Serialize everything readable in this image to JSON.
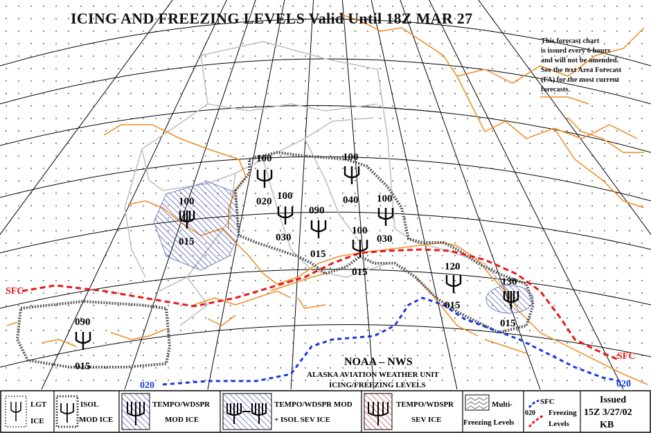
{
  "title": "ICING AND FREEZING LEVELS Valid Until 18Z MAR 27",
  "notice": [
    "This forecast chart",
    "is issued every 6 hours",
    "and will not be amended.",
    "See the text Area Forecast",
    "(FA) for the most current",
    "forecasts."
  ],
  "icing_areas": [
    {
      "top": "100",
      "bottom": "015",
      "category": "TEMPO/WDSPR MOD ICE"
    },
    {
      "top": "100",
      "bottom": "020",
      "category": "ISOL MOD ICE"
    },
    {
      "top": "100",
      "bottom": "030",
      "category": "ISOL MOD ICE"
    },
    {
      "top": "090",
      "bottom": "015",
      "category": "ISOL MOD ICE"
    },
    {
      "top": "100",
      "bottom": "040",
      "category": "ISOL MOD ICE"
    },
    {
      "top": "100",
      "bottom": "030",
      "category": "ISOL MOD ICE"
    },
    {
      "top": "100",
      "bottom": "015",
      "category": "ISOL MOD ICE"
    },
    {
      "top": "120",
      "bottom": "015",
      "category": "ISOL MOD ICE"
    },
    {
      "top": "130",
      "bottom": "015",
      "category": "TEMPO/WDSPR MOD ICE"
    },
    {
      "top": "090",
      "bottom": "015",
      "category": "ISOL MOD ICE"
    }
  ],
  "freezing_levels": {
    "surface_label_west": "SFC",
    "surface_label_east": "SFC",
    "level_020_west": "020",
    "level_020_east": "020"
  },
  "agency": {
    "name": "NOAA – NWS",
    "unit": "ALASKA AVIATION WEATHER UNIT",
    "product": "ICING/FREEZING LEVELS"
  },
  "legend": {
    "lgt_ice": [
      "LGT",
      "ICE"
    ],
    "isol_mod_ice": [
      "ISOL",
      "MOD ICE"
    ],
    "tempo_mod_ice": [
      "TEMPO/WDSPR",
      "MOD ICE"
    ],
    "tempo_mod_isol_sev": [
      "TEMPO/WDSPR MOD",
      "+ ISOL SEV ICE"
    ],
    "tempo_sev_ice": [
      "TEMPO/WDSPR",
      "SEV ICE"
    ],
    "multi_freezing": [
      "Multi-",
      "Freezing Levels"
    ],
    "sfc": "SFC",
    "level_020": "020",
    "freezing": "Freezing",
    "levels": "Levels"
  },
  "issued": {
    "label": "Issued",
    "time": "15Z 3/27/02",
    "forecaster": "KB"
  },
  "colors": {
    "coastline": "#f08a1e",
    "sfc_freezing": "#e81818",
    "freezing_020": "#1838e0",
    "graticule": "#000000",
    "borders": "#c0c0c0",
    "mod_ice_hatch": "#2030a0",
    "sev_ice_hatch": "#d02020"
  }
}
